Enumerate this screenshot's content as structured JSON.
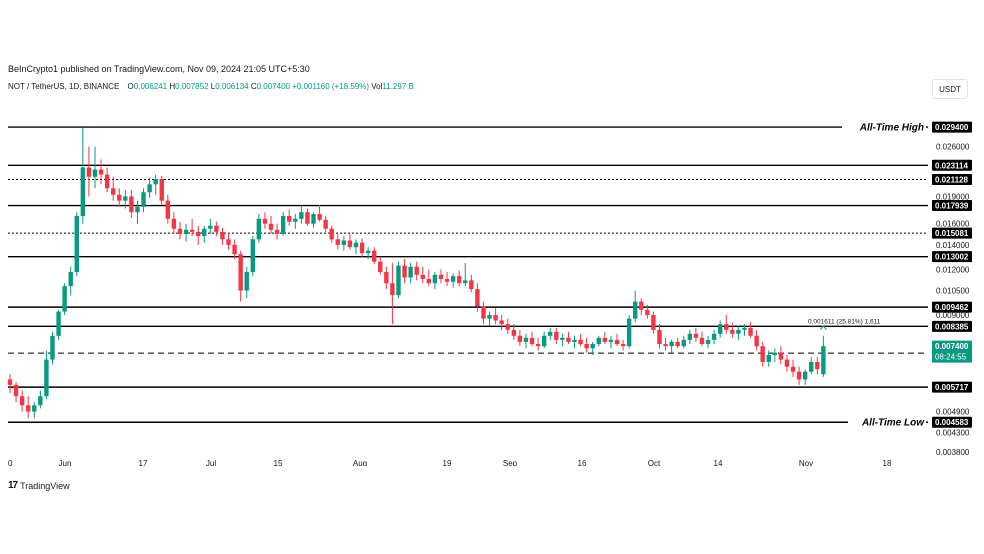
{
  "header": {
    "published": "BeInCrypto1 published on TradingView.com, Nov 09, 2024 21:05 UTC+5:30",
    "symbol": "NOT / TetherUS, 1D, BINANCE",
    "ohlc": {
      "o_label": "O",
      "o": "0.006241",
      "h_label": "H",
      "h": "0.007852",
      "l_label": "L",
      "l": "0.006134",
      "c_label": "C",
      "c": "0.007400",
      "change": "+0.001160 (+18.59%)",
      "vol_label": "Vol",
      "vol": "11.297 B"
    },
    "currency": "USDT"
  },
  "footer": {
    "logo_text": "TradingView"
  },
  "colors": {
    "up": "#089981",
    "down": "#f23645",
    "line": "#000000",
    "axis_text": "#131722",
    "badge_bg": "#000000",
    "badge_text": "#ffffff",
    "last_price_bg": "#089981"
  },
  "chart_data": {
    "type": "candlestick",
    "y_scale": "log",
    "ylim": [
      0.0038,
      0.034
    ],
    "y_ticks": [
      "0.026000",
      "0.019000",
      "0.016000",
      "0.014000",
      "0.012000",
      "0.010500",
      "0.009000",
      "0.004900",
      "0.004300",
      "0.003800"
    ],
    "x_ticks": [
      "0",
      "Jun",
      "17",
      "Jul",
      "15",
      "Aug",
      "19",
      "Sep",
      "16",
      "Oct",
      "14",
      "Nov",
      "18"
    ],
    "levels": [
      {
        "value": 0.0294,
        "label": "0.029400",
        "style": "solid",
        "annotation": "All-Time High"
      },
      {
        "value": 0.023114,
        "label": "0.023114",
        "style": "solid"
      },
      {
        "value": 0.021128,
        "label": "0.021128",
        "style": "dotted"
      },
      {
        "value": 0.017939,
        "label": "0.017939",
        "style": "solid"
      },
      {
        "value": 0.015081,
        "label": "0.015081",
        "style": "dotted"
      },
      {
        "value": 0.013002,
        "label": "0.013002",
        "style": "solid"
      },
      {
        "value": 0.009462,
        "label": "0.009462",
        "style": "solid"
      },
      {
        "value": 0.008385,
        "label": "0.008385",
        "style": "solid"
      },
      {
        "value": 0.007082,
        "label": "0.007082",
        "style": "dashed"
      },
      {
        "value": 0.005717,
        "label": "0.005717",
        "style": "solid"
      },
      {
        "value": 0.004583,
        "label": "0.004583",
        "style": "solid",
        "annotation": "All-Time Low"
      }
    ],
    "last_price": {
      "value": 0.0074,
      "label": "0.007400",
      "countdown": "08:24:55"
    },
    "measure_text": "0.001611 (25.81%) 1,611",
    "candles": [
      [
        0.006,
        0.0062,
        0.0055,
        0.0058
      ],
      [
        0.0058,
        0.0059,
        0.0052,
        0.0054
      ],
      [
        0.0054,
        0.0056,
        0.0049,
        0.0051
      ],
      [
        0.0051,
        0.0054,
        0.0047,
        0.0049
      ],
      [
        0.0049,
        0.0052,
        0.0047,
        0.0051
      ],
      [
        0.0051,
        0.0056,
        0.005,
        0.0054
      ],
      [
        0.0054,
        0.0072,
        0.0053,
        0.0068
      ],
      [
        0.0068,
        0.0081,
        0.0066,
        0.0079
      ],
      [
        0.0079,
        0.0093,
        0.0077,
        0.0092
      ],
      [
        0.0092,
        0.011,
        0.009,
        0.0108
      ],
      [
        0.0108,
        0.0122,
        0.0102,
        0.0118
      ],
      [
        0.0118,
        0.0172,
        0.0115,
        0.0168
      ],
      [
        0.0168,
        0.0294,
        0.016,
        0.0228
      ],
      [
        0.0228,
        0.026,
        0.019,
        0.0215
      ],
      [
        0.0215,
        0.026,
        0.02,
        0.0225
      ],
      [
        0.0225,
        0.024,
        0.0205,
        0.0218
      ],
      [
        0.0218,
        0.0228,
        0.0195,
        0.02
      ],
      [
        0.02,
        0.0215,
        0.0185,
        0.0192
      ],
      [
        0.0192,
        0.02,
        0.0178,
        0.0185
      ],
      [
        0.0185,
        0.0198,
        0.0176,
        0.019
      ],
      [
        0.019,
        0.0198,
        0.0166,
        0.0172
      ],
      [
        0.0172,
        0.0185,
        0.016,
        0.0178
      ],
      [
        0.0178,
        0.02,
        0.0172,
        0.0195
      ],
      [
        0.0195,
        0.0214,
        0.0188,
        0.0205
      ],
      [
        0.0205,
        0.0218,
        0.0192,
        0.0212
      ],
      [
        0.0212,
        0.0216,
        0.018,
        0.0185
      ],
      [
        0.0185,
        0.0192,
        0.016,
        0.0165
      ],
      [
        0.0165,
        0.0172,
        0.015,
        0.0155
      ],
      [
        0.0155,
        0.0162,
        0.0145,
        0.015
      ],
      [
        0.015,
        0.016,
        0.0143,
        0.0154
      ],
      [
        0.0154,
        0.0165,
        0.0148,
        0.0152
      ],
      [
        0.0152,
        0.0158,
        0.014,
        0.0148
      ],
      [
        0.0148,
        0.0158,
        0.0142,
        0.0155
      ],
      [
        0.0155,
        0.0165,
        0.015,
        0.0158
      ],
      [
        0.0158,
        0.0162,
        0.0148,
        0.0152
      ],
      [
        0.0152,
        0.0156,
        0.014,
        0.0145
      ],
      [
        0.0145,
        0.015,
        0.0136,
        0.014
      ],
      [
        0.014,
        0.0145,
        0.0128,
        0.0132
      ],
      [
        0.0132,
        0.0135,
        0.0098,
        0.0105
      ],
      [
        0.0105,
        0.0122,
        0.01,
        0.0118
      ],
      [
        0.0118,
        0.0148,
        0.0115,
        0.0145
      ],
      [
        0.0145,
        0.017,
        0.0142,
        0.0165
      ],
      [
        0.0165,
        0.0172,
        0.0155,
        0.016
      ],
      [
        0.016,
        0.0168,
        0.015,
        0.0154
      ],
      [
        0.0154,
        0.016,
        0.0145,
        0.015
      ],
      [
        0.015,
        0.0172,
        0.0148,
        0.0168
      ],
      [
        0.0168,
        0.0175,
        0.0158,
        0.0162
      ],
      [
        0.0162,
        0.017,
        0.0155,
        0.0165
      ],
      [
        0.0165,
        0.0178,
        0.016,
        0.0172
      ],
      [
        0.0172,
        0.0176,
        0.0158,
        0.016
      ],
      [
        0.016,
        0.0172,
        0.0156,
        0.017
      ],
      [
        0.017,
        0.018,
        0.0162,
        0.0164
      ],
      [
        0.0164,
        0.0168,
        0.0152,
        0.0155
      ],
      [
        0.0155,
        0.0158,
        0.0142,
        0.0145
      ],
      [
        0.0145,
        0.015,
        0.0136,
        0.014
      ],
      [
        0.014,
        0.0148,
        0.0135,
        0.0144
      ],
      [
        0.0144,
        0.015,
        0.0136,
        0.0138
      ],
      [
        0.0138,
        0.0145,
        0.0132,
        0.0142
      ],
      [
        0.0142,
        0.0146,
        0.013,
        0.0133
      ],
      [
        0.0133,
        0.0138,
        0.0128,
        0.0135
      ],
      [
        0.0135,
        0.0138,
        0.0124,
        0.0126
      ],
      [
        0.0126,
        0.013,
        0.0116,
        0.0118
      ],
      [
        0.0118,
        0.0122,
        0.0106,
        0.011
      ],
      [
        0.011,
        0.0125,
        0.0085,
        0.0102
      ],
      [
        0.0102,
        0.0126,
        0.01,
        0.0123
      ],
      [
        0.0123,
        0.0128,
        0.011,
        0.0114
      ],
      [
        0.0114,
        0.0125,
        0.011,
        0.0122
      ],
      [
        0.0122,
        0.0126,
        0.0112,
        0.0116
      ],
      [
        0.0116,
        0.0122,
        0.011,
        0.0113
      ],
      [
        0.0113,
        0.012,
        0.0108,
        0.011
      ],
      [
        0.011,
        0.0118,
        0.0106,
        0.0116
      ],
      [
        0.0116,
        0.012,
        0.011,
        0.0113
      ],
      [
        0.0113,
        0.0118,
        0.0108,
        0.0111
      ],
      [
        0.0111,
        0.0117,
        0.0107,
        0.0115
      ],
      [
        0.0115,
        0.0119,
        0.0108,
        0.011
      ],
      [
        0.011,
        0.0125,
        0.0108,
        0.0112
      ],
      [
        0.0112,
        0.0116,
        0.0104,
        0.0106
      ],
      [
        0.0106,
        0.011,
        0.0092,
        0.0095
      ],
      [
        0.0095,
        0.0098,
        0.0085,
        0.0088
      ],
      [
        0.0088,
        0.0092,
        0.0084,
        0.009
      ],
      [
        0.009,
        0.0094,
        0.0085,
        0.0087
      ],
      [
        0.0087,
        0.009,
        0.0082,
        0.0085
      ],
      [
        0.0085,
        0.0088,
        0.008,
        0.0082
      ],
      [
        0.0082,
        0.0085,
        0.0077,
        0.0079
      ],
      [
        0.0079,
        0.0082,
        0.0074,
        0.0076
      ],
      [
        0.0076,
        0.008,
        0.0073,
        0.0078
      ],
      [
        0.0078,
        0.0081,
        0.0074,
        0.0075
      ],
      [
        0.0075,
        0.0078,
        0.0072,
        0.0074
      ],
      [
        0.0074,
        0.0081,
        0.0073,
        0.0079
      ],
      [
        0.0079,
        0.0083,
        0.0077,
        0.0081
      ],
      [
        0.0081,
        0.0083,
        0.0075,
        0.0077
      ],
      [
        0.0077,
        0.008,
        0.0074,
        0.0078
      ],
      [
        0.0078,
        0.0081,
        0.0075,
        0.0076
      ],
      [
        0.0076,
        0.0079,
        0.0073,
        0.0077
      ],
      [
        0.0077,
        0.008,
        0.0074,
        0.0075
      ],
      [
        0.0075,
        0.0078,
        0.0071,
        0.0073
      ],
      [
        0.0073,
        0.0076,
        0.007,
        0.0075
      ],
      [
        0.0075,
        0.0079,
        0.0074,
        0.0078
      ],
      [
        0.0078,
        0.0081,
        0.0075,
        0.0076
      ],
      [
        0.0076,
        0.0079,
        0.0073,
        0.0077
      ],
      [
        0.0077,
        0.008,
        0.0074,
        0.0075
      ],
      [
        0.0075,
        0.0077,
        0.0072,
        0.0074
      ],
      [
        0.0074,
        0.009,
        0.0073,
        0.0088
      ],
      [
        0.0088,
        0.0105,
        0.0086,
        0.0098
      ],
      [
        0.0098,
        0.01,
        0.009,
        0.0093
      ],
      [
        0.0093,
        0.0096,
        0.0088,
        0.009
      ],
      [
        0.009,
        0.0092,
        0.008,
        0.0082
      ],
      [
        0.0082,
        0.0085,
        0.0073,
        0.0075
      ],
      [
        0.0075,
        0.0078,
        0.0072,
        0.0074
      ],
      [
        0.0074,
        0.0077,
        0.0071,
        0.0076
      ],
      [
        0.0076,
        0.0078,
        0.0073,
        0.0074
      ],
      [
        0.0074,
        0.0079,
        0.0073,
        0.0077
      ],
      [
        0.0077,
        0.0082,
        0.0075,
        0.008
      ],
      [
        0.008,
        0.0083,
        0.0076,
        0.0078
      ],
      [
        0.0078,
        0.0081,
        0.0074,
        0.0075
      ],
      [
        0.0075,
        0.0079,
        0.0073,
        0.0077
      ],
      [
        0.0077,
        0.0082,
        0.0075,
        0.008
      ],
      [
        0.008,
        0.0087,
        0.0078,
        0.0085
      ],
      [
        0.0085,
        0.009,
        0.008,
        0.0082
      ],
      [
        0.0082,
        0.0086,
        0.0078,
        0.008
      ],
      [
        0.008,
        0.0084,
        0.0077,
        0.0082
      ],
      [
        0.0082,
        0.0085,
        0.0079,
        0.0083
      ],
      [
        0.0083,
        0.0086,
        0.0078,
        0.0079
      ],
      [
        0.0079,
        0.0082,
        0.0072,
        0.0074
      ],
      [
        0.0074,
        0.0076,
        0.0065,
        0.0067
      ],
      [
        0.0067,
        0.0072,
        0.0065,
        0.007
      ],
      [
        0.007,
        0.0073,
        0.0067,
        0.0071
      ],
      [
        0.0071,
        0.0074,
        0.0066,
        0.0068
      ],
      [
        0.0068,
        0.007,
        0.0063,
        0.0065
      ],
      [
        0.0065,
        0.0068,
        0.0061,
        0.0063
      ],
      [
        0.0063,
        0.0065,
        0.0058,
        0.006
      ],
      [
        0.006,
        0.0064,
        0.0058,
        0.0063
      ],
      [
        0.0063,
        0.0069,
        0.0062,
        0.0067
      ],
      [
        0.0067,
        0.0069,
        0.0062,
        0.0064
      ],
      [
        0.0062,
        0.0079,
        0.0061,
        0.0074
      ]
    ]
  }
}
